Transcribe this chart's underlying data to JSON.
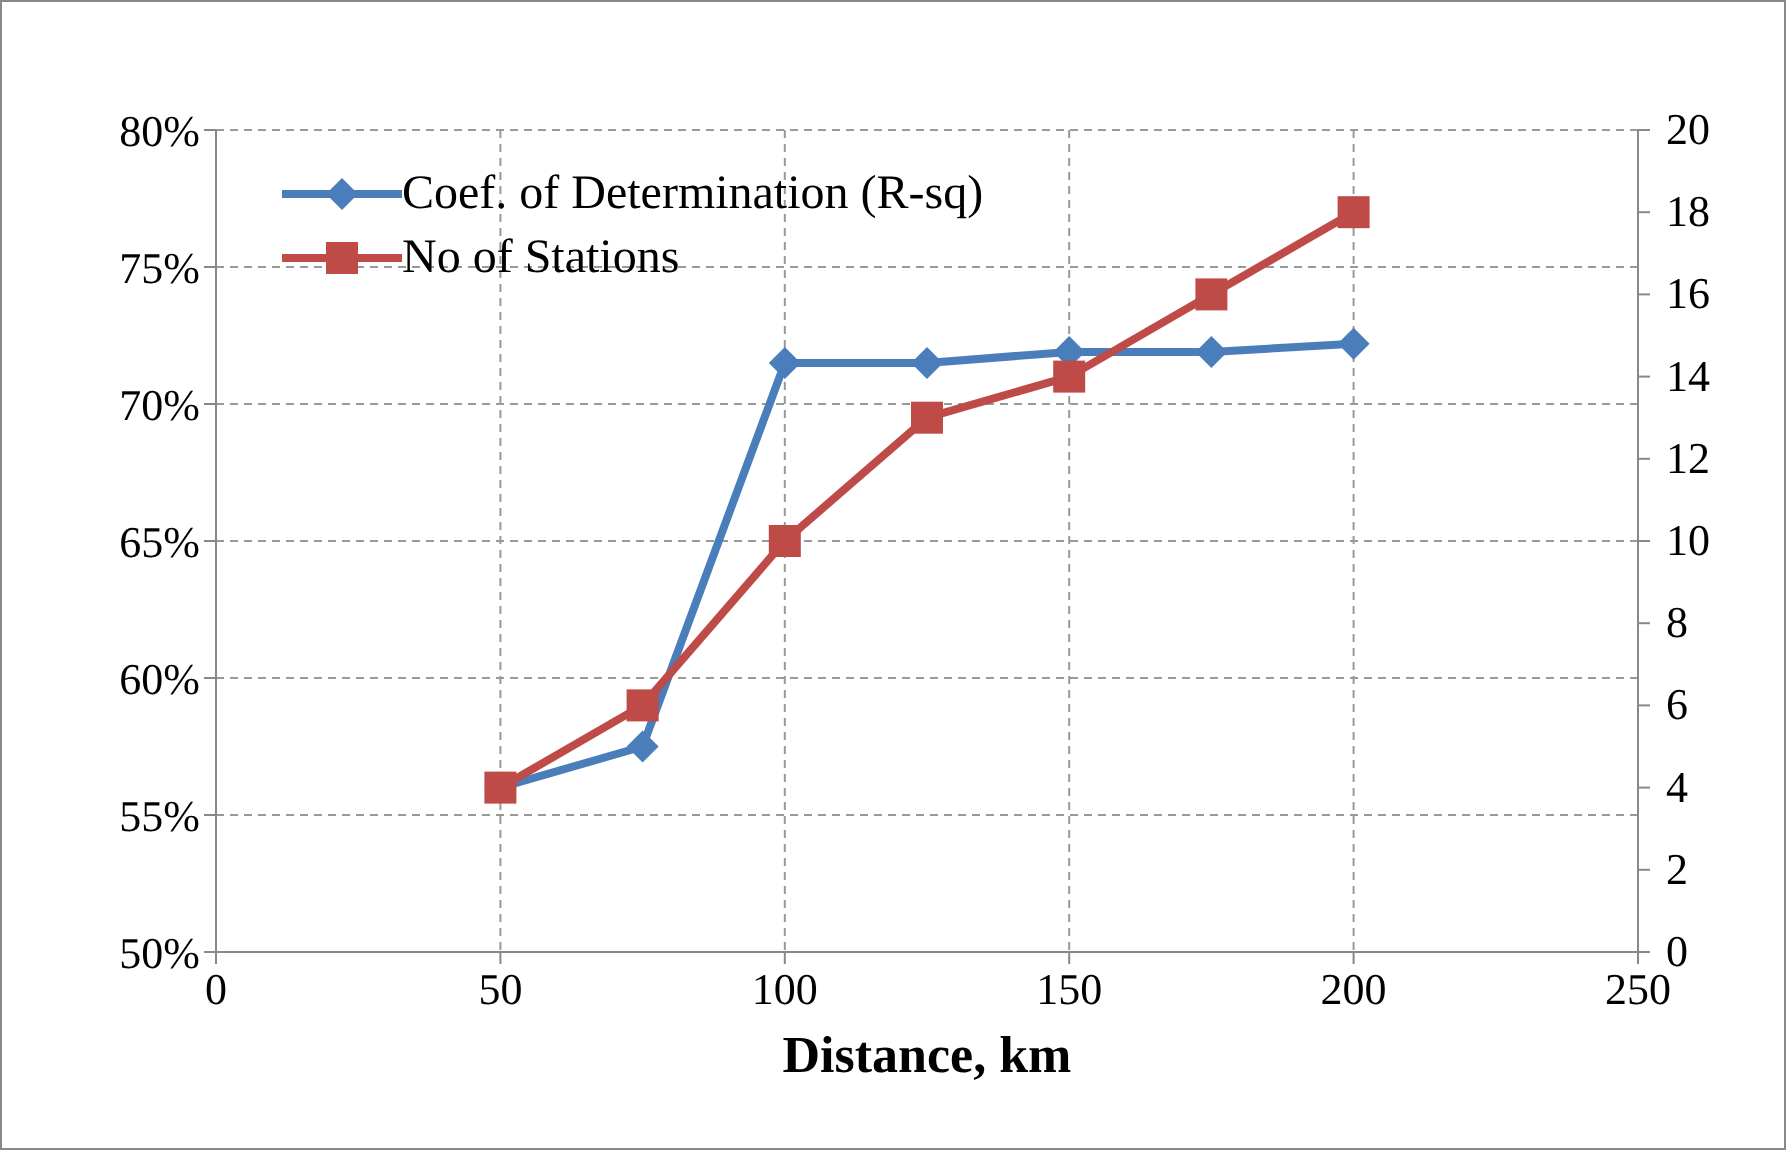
{
  "chart_data": {
    "type": "line",
    "xlabel": "Distance, km",
    "x": [
      50,
      75,
      100,
      125,
      150,
      175,
      200
    ],
    "xlim": [
      0,
      250
    ],
    "xticks": [
      0,
      50,
      100,
      150,
      200,
      250
    ],
    "ylim": [
      50,
      80
    ],
    "yticks": [
      {
        "value": 50,
        "label": "50%"
      },
      {
        "value": 55,
        "label": "55%"
      },
      {
        "value": 60,
        "label": "60%"
      },
      {
        "value": 65,
        "label": "65%"
      },
      {
        "value": 70,
        "label": "70%"
      },
      {
        "value": 75,
        "label": "75%"
      },
      {
        "value": 80,
        "label": "80%"
      }
    ],
    "y2lim": [
      0,
      20
    ],
    "y2ticks": [
      0,
      2,
      4,
      6,
      8,
      10,
      12,
      14,
      16,
      18,
      20
    ],
    "series": [
      {
        "name": "Coef. of Determination (R-sq)",
        "color": "#4a7ebb",
        "marker": "diamond",
        "values": [
          56.0,
          57.5,
          71.5,
          71.5,
          71.9,
          71.9,
          72.2
        ]
      },
      {
        "name": "No of Stations",
        "color": "#be4b48",
        "marker": "square",
        "axis": "y2",
        "values": [
          4,
          6,
          10,
          13,
          14,
          16,
          18
        ]
      }
    ],
    "grid": true,
    "legend": "top left"
  }
}
